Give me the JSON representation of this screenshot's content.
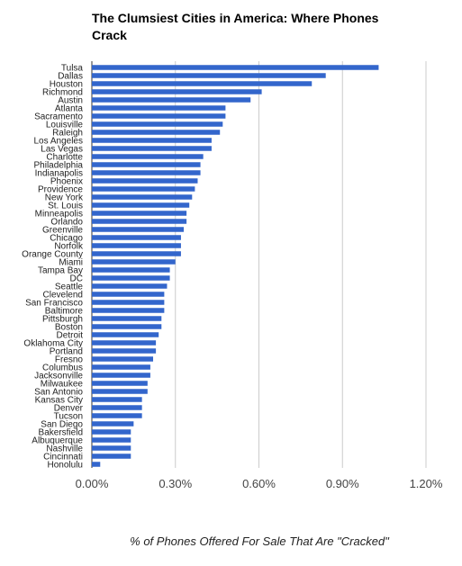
{
  "chart_data": {
    "type": "bar",
    "orientation": "horizontal",
    "title_lines": [
      "The Clumsiest Cities in America: Where Phones",
      "Crack"
    ],
    "xlabel": "% of Phones Offered For Sale That Are \"Cracked\"",
    "ylabel": "",
    "xlim": [
      0,
      1.2
    ],
    "ticks": [
      0,
      0.3,
      0.6,
      0.9,
      1.2
    ],
    "tick_labels": [
      "0.00%",
      "0.30%",
      "0.60%",
      "0.90%",
      "1.20%"
    ],
    "grid": true,
    "bar_color": "#3366cc",
    "categories": [
      "Tulsa",
      "Dallas",
      "Houston",
      "Richmond",
      "Austin",
      "Atlanta",
      "Sacramento",
      "Louisville",
      "Raleigh",
      "Los Angeles",
      "Las Vegas",
      "Charlotte",
      "Philadelphia",
      "Indianapolis",
      "Phoenix",
      "Providence",
      "New York",
      "St. Louis",
      "Minneapolis",
      "Orlando",
      "Greenville",
      "Chicago",
      "Norfolk",
      "Orange County",
      "Miami",
      "Tampa Bay",
      "DC",
      "Seattle",
      "Clevelend",
      "San Francisco",
      "Baltimore",
      "Pittsburgh",
      "Boston",
      "Detroit",
      "Oklahoma City",
      "Portland",
      "Fresno",
      "Columbus",
      "Jacksonville",
      "Milwaukee",
      "San Antonio",
      "Kansas City",
      "Denver",
      "Tucson",
      "San Diego",
      "Bakersfield",
      "Albuquerque",
      "Nashville",
      "Cincinnati",
      "Honolulu"
    ],
    "values": [
      1.03,
      0.84,
      0.79,
      0.61,
      0.57,
      0.48,
      0.48,
      0.47,
      0.46,
      0.43,
      0.43,
      0.4,
      0.39,
      0.39,
      0.38,
      0.37,
      0.36,
      0.35,
      0.34,
      0.34,
      0.33,
      0.32,
      0.32,
      0.32,
      0.3,
      0.28,
      0.28,
      0.27,
      0.26,
      0.26,
      0.26,
      0.25,
      0.25,
      0.24,
      0.23,
      0.23,
      0.22,
      0.21,
      0.21,
      0.2,
      0.2,
      0.18,
      0.18,
      0.18,
      0.15,
      0.14,
      0.14,
      0.14,
      0.14,
      0.03
    ]
  }
}
